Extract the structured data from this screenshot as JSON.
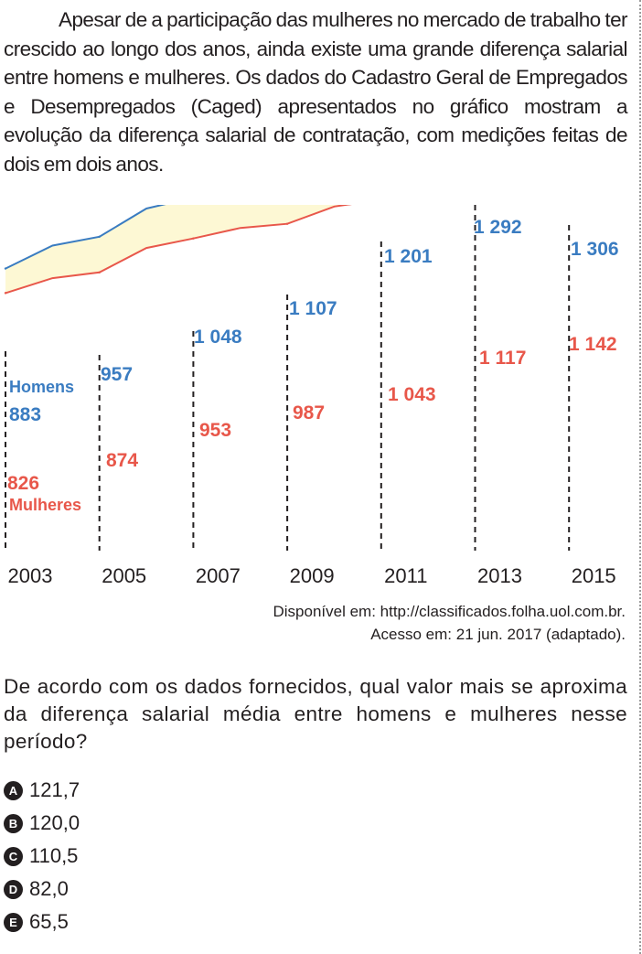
{
  "intro_text": "Apesar de a participação das mulheres no mercado de trabalho ter crescido ao longo dos anos, ainda existe uma grande diferença salarial entre homens e mulheres. Os dados do Cadastro Geral de Empregados e Desempregados (Caged) apresentados no gráfico mostram a evolução da diferença salarial de contratação, com medições feitas de dois em dois anos.",
  "chart_data": {
    "type": "line",
    "title": "",
    "xlabel": "",
    "ylabel": "",
    "x": [
      "2003",
      "2005",
      "2007",
      "2009",
      "2011",
      "2013",
      "2015"
    ],
    "series": [
      {
        "name": "Homens",
        "color": "#3a7cc1",
        "values": [
          883,
          957,
          1048,
          1107,
          1201,
          1292,
          1306
        ],
        "labels": [
          "883",
          "957",
          "1 048",
          "1 107",
          "1 201",
          "1 292",
          "1 306"
        ]
      },
      {
        "name": "Mulheres",
        "color": "#e8574a",
        "values": [
          826,
          874,
          953,
          987,
          1043,
          1117,
          1142
        ],
        "labels": [
          "826",
          "874",
          "953",
          "987",
          "1 043",
          "1 117",
          "1 142"
        ]
      }
    ],
    "fill_between_color": "#fdf8d4",
    "grid": "vertical dashed lines at each year",
    "y_axis": "none"
  },
  "source": {
    "line1": "Disponível em: http://classificados.folha.uol.com.br.",
    "line2": "Acesso em: 21 jun. 2017 (adaptado)."
  },
  "question": "De acordo com os dados fornecidos, qual valor mais se aproxima da diferença salarial média entre homens e mulheres nesse período?",
  "options": [
    {
      "letter": "A",
      "text": "121,7"
    },
    {
      "letter": "B",
      "text": "120,0"
    },
    {
      "letter": "C",
      "text": "110,5"
    },
    {
      "letter": "D",
      "text": "82,0"
    },
    {
      "letter": "E",
      "text": "65,5"
    }
  ]
}
